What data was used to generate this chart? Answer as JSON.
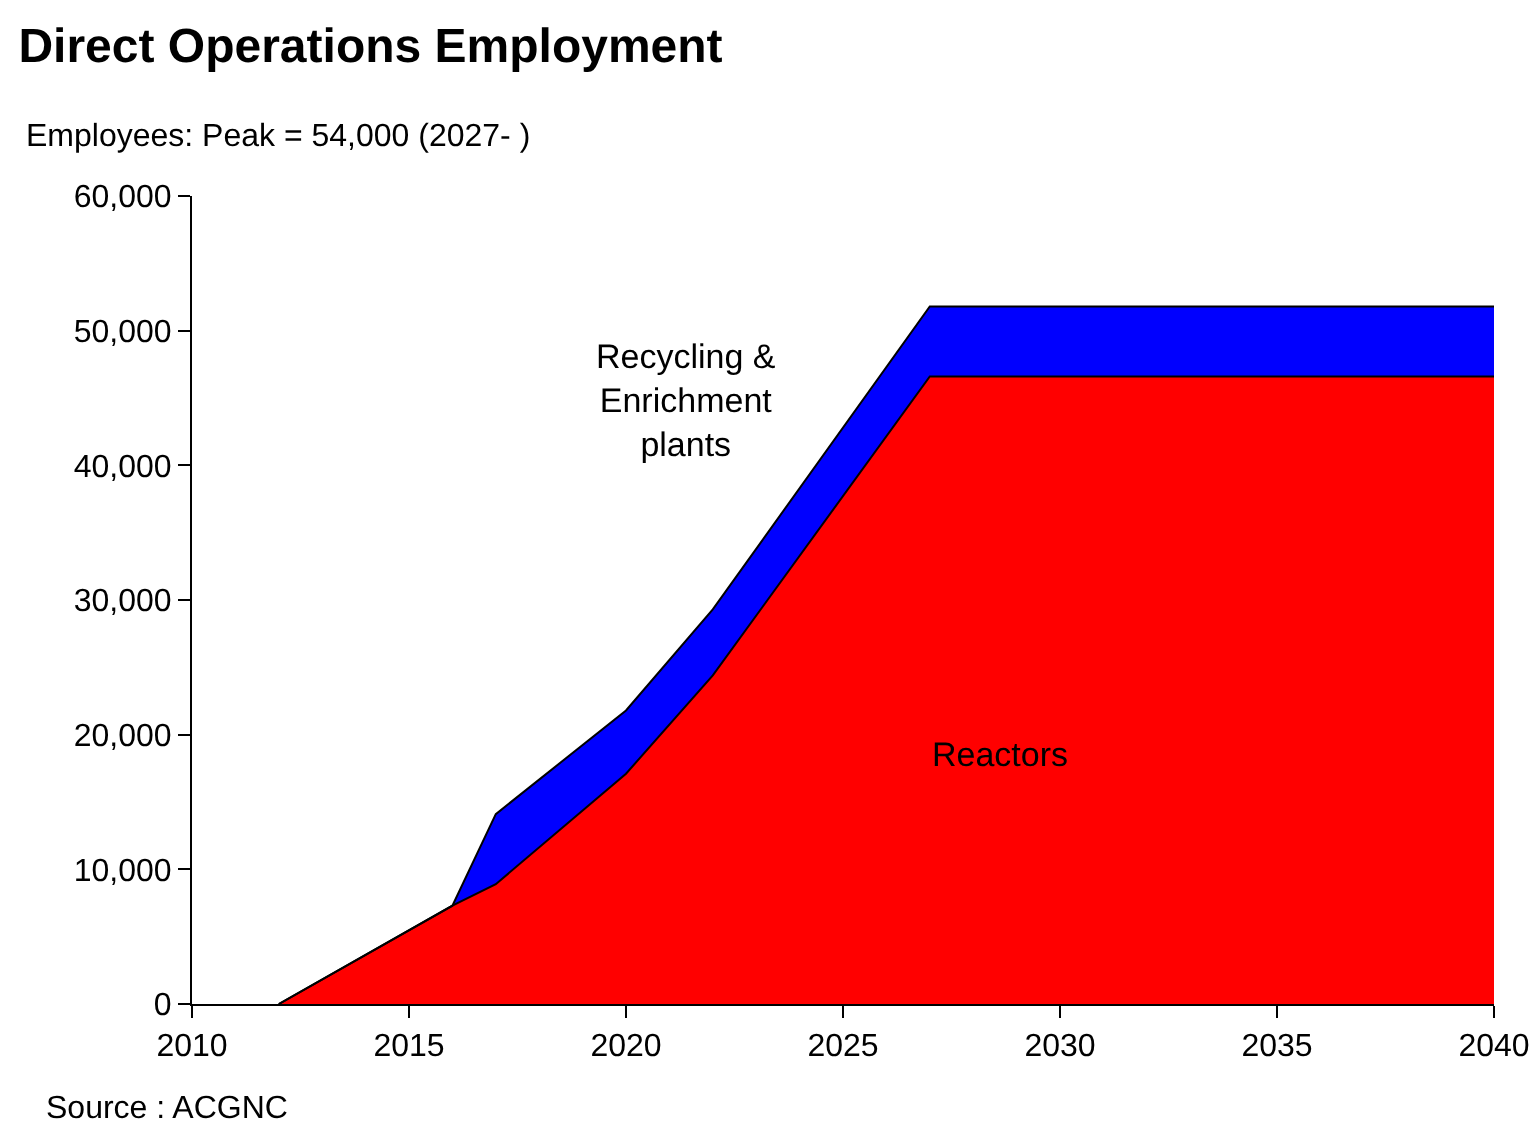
{
  "chart_data": {
    "type": "area",
    "title": "Direct Operations Employment",
    "subtitle": "Employees: Peak = 54,000 (2027- )",
    "x": [
      2012,
      2016,
      2017,
      2020,
      2022,
      2027,
      2040
    ],
    "stacked": true,
    "series": [
      {
        "name": "Reactors",
        "color": "#ff0000",
        "values": [
          0,
          7300,
          8900,
          17100,
          24400,
          46600,
          46600
        ]
      },
      {
        "name": "Recycling & Enrichment plants",
        "color": "#0000ff",
        "values": [
          0,
          0,
          5200,
          4700,
          4900,
          5200,
          5200
        ]
      }
    ],
    "xlim": [
      2010,
      2040
    ],
    "xticks": [
      2010,
      2015,
      2020,
      2025,
      2030,
      2035,
      2040
    ],
    "ylim": [
      0,
      60000
    ],
    "yticks": [
      0,
      {
        "value": 10000,
        "label": "10,000"
      },
      {
        "value": 20000,
        "label": "20,000"
      },
      {
        "value": 30000,
        "label": "30,000"
      },
      {
        "value": 40000,
        "label": "40,000"
      },
      {
        "value": 50000,
        "label": "50,000"
      },
      {
        "value": 60000,
        "label": "60,000"
      }
    ],
    "grid": false,
    "legend": false,
    "annotations": [
      "Source : ACGNC"
    ]
  }
}
